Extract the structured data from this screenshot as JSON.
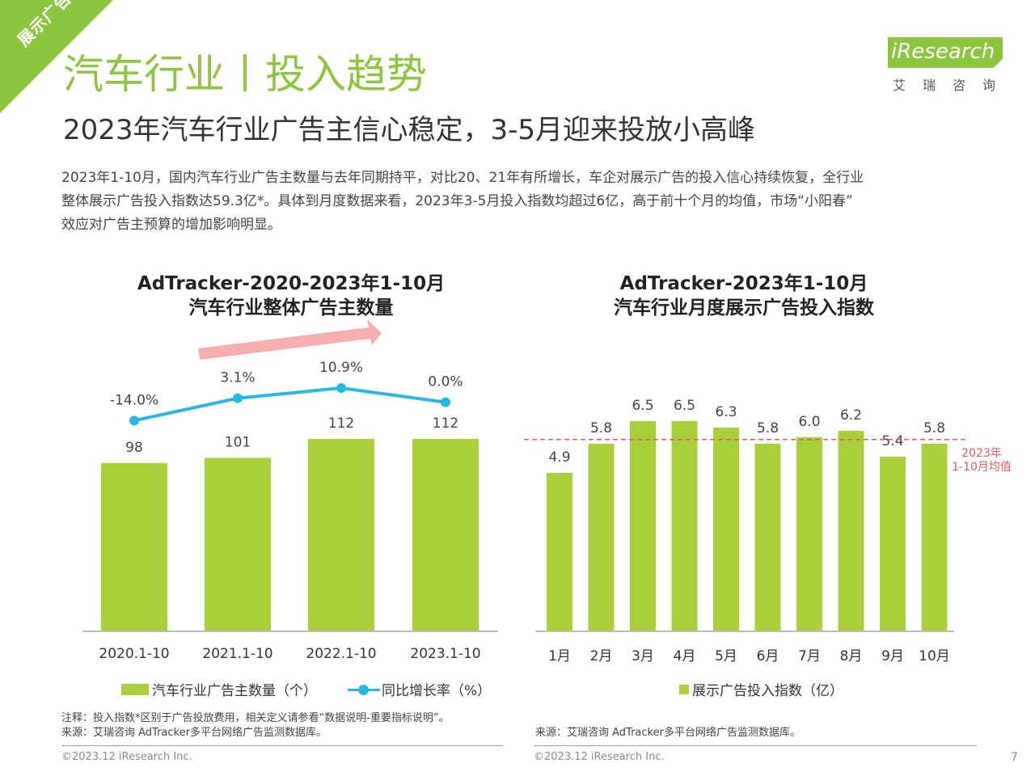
{
  "ribbon": {
    "label": "展示广告"
  },
  "header": {
    "title": "汽车行业丨投入趋势",
    "subtitle": "2023年汽车行业广告主信心稳定，3-5月迎来投放小高峰"
  },
  "logo": {
    "brand": "iResearch",
    "cn": "艾瑞咨询"
  },
  "intro": {
    "line1": "2023年1-10月，国内汽车行业广告主数量与去年同期持平，对比20、21年有所增长，车企对展示广告的投入信心持续恢复，全行业",
    "line2": "整体展示广告投入指数达59.3亿*。具体到月度数据来看，2023年3-5月投入指数均超过6亿，高于前十个月的均值，市场“小阳春”",
    "line3": "效应对广告主预算的增加影响明显。"
  },
  "chart_data": [
    {
      "type": "bar",
      "title_line1": "AdTracker-2020-2023年1-10月",
      "title_line2": "汽车行业整体广告主数量",
      "categories": [
        "2020.1-10",
        "2021.1-10",
        "2022.1-10",
        "2023.1-10"
      ],
      "series": [
        {
          "name": "汽车行业广告主数量（个）",
          "type": "bar",
          "values": [
            98,
            101,
            112,
            112
          ],
          "labels": [
            "98",
            "101",
            "112",
            "112"
          ],
          "color": "#a9cf3a"
        },
        {
          "name": "同比增长率（%）",
          "type": "line",
          "values": [
            -14.0,
            3.1,
            10.9,
            0.0
          ],
          "labels": [
            "-14.0%",
            "3.1%",
            "10.9%",
            "0.0%"
          ],
          "color": "#29b6e0"
        }
      ],
      "ylim": [
        0,
        160
      ],
      "grid": false,
      "legend_position": "bottom"
    },
    {
      "type": "bar",
      "title_line1": "AdTracker-2023年1-10月",
      "title_line2": "汽车行业月度展示广告投入指数",
      "categories": [
        "1月",
        "2月",
        "3月",
        "4月",
        "5月",
        "6月",
        "7月",
        "8月",
        "9月",
        "10月"
      ],
      "series": [
        {
          "name": "展示广告投入指数（亿）",
          "values": [
            4.9,
            5.8,
            6.5,
            6.5,
            6.3,
            5.8,
            6.0,
            6.2,
            5.4,
            5.8
          ],
          "labels": [
            "4.9",
            "5.8",
            "6.5",
            "6.5",
            "6.3",
            "5.8",
            "6.0",
            "6.2",
            "5.4",
            "5.8"
          ],
          "color": "#a9cf3a"
        }
      ],
      "reference_line": {
        "value": 5.93,
        "label_line1": "2023年",
        "label_line2": "1-10月均值",
        "color": "#e8575a"
      },
      "ylim": [
        0,
        7.3
      ],
      "grid": false,
      "legend_position": "bottom"
    }
  ],
  "notes": {
    "left_note": "注释：投入指数*区别于广告投放费用，相关定义请参看“数据说明-重要指标说明”。",
    "left_source": "来源：艾瑞咨询 AdTracker多平台网络广告监测数据库。",
    "right_source": "来源：艾瑞咨询 AdTracker多平台网络广告监测数据库。",
    "copyright_left": "©2023.12 iResearch Inc.",
    "copyright_right": "©2023.12 iResearch Inc.",
    "page_number": "7"
  }
}
